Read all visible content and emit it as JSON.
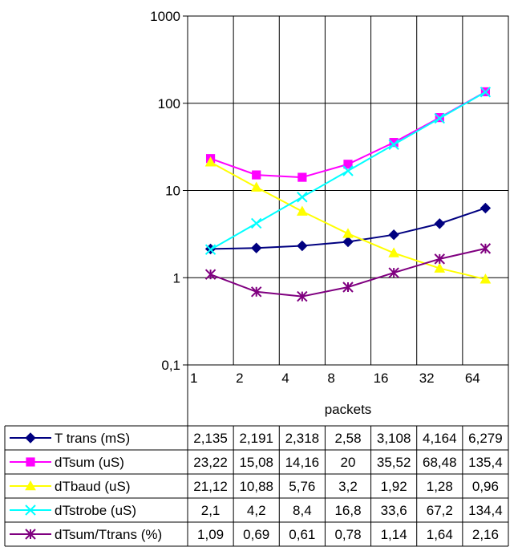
{
  "chart_data": {
    "type": "line",
    "y_scale": "log",
    "ylim": [
      0.1,
      1000
    ],
    "yticks": [
      "0,1",
      "1",
      "10",
      "100",
      "1000"
    ],
    "categories": [
      "1",
      "2",
      "4",
      "8",
      "16",
      "32",
      "64"
    ],
    "xlabel": "packets",
    "grid": true,
    "series": [
      {
        "name": "T  trans (mS)",
        "color": "#000080",
        "marker": "diamond",
        "values": [
          2.135,
          2.191,
          2.318,
          2.58,
          3.108,
          4.164,
          6.279
        ],
        "labels": [
          "2,135",
          "2,191",
          "2,318",
          "2,58",
          "3,108",
          "4,164",
          "6,279"
        ]
      },
      {
        "name": "dTsum (uS)",
        "color": "#FF00FF",
        "marker": "square",
        "values": [
          23.22,
          15.08,
          14.16,
          20,
          35.52,
          68.48,
          135.4
        ],
        "labels": [
          "23,22",
          "15,08",
          "14,16",
          "20",
          "35,52",
          "68,48",
          "135,4"
        ]
      },
      {
        "name": "dTbaud  (uS)",
        "color": "#FFFF00",
        "marker": "triangle",
        "values": [
          21.12,
          10.88,
          5.76,
          3.2,
          1.92,
          1.28,
          0.96
        ],
        "labels": [
          "21,12",
          "10,88",
          "5,76",
          "3,2",
          "1,92",
          "1,28",
          "0,96"
        ]
      },
      {
        "name": "dTstrobe  (uS)",
        "color": "#00FFFF",
        "marker": "x",
        "values": [
          2.1,
          4.2,
          8.4,
          16.8,
          33.6,
          67.2,
          134.4
        ],
        "labels": [
          "2,1",
          "4,2",
          "8,4",
          "16,8",
          "33,6",
          "67,2",
          "134,4"
        ]
      },
      {
        "name": "dTsum/Ttrans (%)",
        "color": "#800080",
        "marker": "star",
        "values": [
          1.09,
          0.69,
          0.61,
          0.78,
          1.14,
          1.64,
          2.16
        ],
        "labels": [
          "1,09",
          "0,69",
          "0,61",
          "0,78",
          "1,14",
          "1,64",
          "2,16"
        ]
      }
    ]
  }
}
